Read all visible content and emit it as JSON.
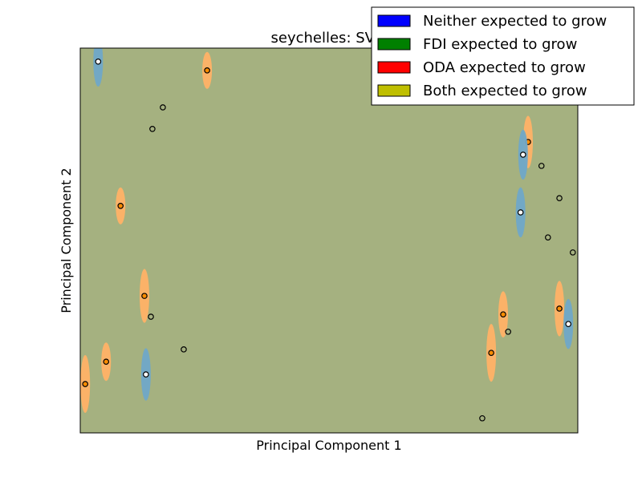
{
  "chart_data": {
    "type": "scatter",
    "title": "seychelles: SVM",
    "xlabel": "Principal Component 1",
    "ylabel": "Principal Component 2",
    "xlim": [
      0,
      100
    ],
    "ylim": [
      0,
      100
    ],
    "grid": false,
    "background_color": "#a5b180",
    "legend": {
      "placement": "top-right",
      "entries": [
        {
          "label": "Neither expected to grow",
          "color": "#0000ff"
        },
        {
          "label": "FDI expected to grow",
          "color": "#008000"
        },
        {
          "label": "ODA expected to grow",
          "color": "#ff0000"
        },
        {
          "label": "Both expected to grow",
          "color": "#bfbf00"
        }
      ]
    },
    "halo_colors": {
      "blue": "#6fa8c8",
      "orange": "#ffb266"
    },
    "points": [
      {
        "x": 3.6,
        "y": 96.5,
        "halo": "blue",
        "ry": 6.5
      },
      {
        "x": 25.5,
        "y": 94.2,
        "halo": "orange",
        "ry": 4.8
      },
      {
        "x": 16.6,
        "y": 84.6,
        "halo": null
      },
      {
        "x": 14.5,
        "y": 79.0,
        "halo": null
      },
      {
        "x": 90.0,
        "y": 75.6,
        "halo": "orange",
        "ry": 6.8
      },
      {
        "x": 89.0,
        "y": 72.3,
        "halo": "blue",
        "ry": 6.5
      },
      {
        "x": 92.7,
        "y": 69.4,
        "halo": null
      },
      {
        "x": 96.3,
        "y": 61.0,
        "halo": null
      },
      {
        "x": 8.1,
        "y": 59.0,
        "halo": "orange",
        "ry": 4.8
      },
      {
        "x": 88.5,
        "y": 57.3,
        "halo": "blue",
        "ry": 6.5
      },
      {
        "x": 94.0,
        "y": 50.8,
        "halo": null
      },
      {
        "x": 99.0,
        "y": 46.9,
        "halo": null
      },
      {
        "x": 12.9,
        "y": 35.6,
        "halo": "orange",
        "ry": 7.0
      },
      {
        "x": 96.3,
        "y": 32.3,
        "halo": "orange",
        "ry": 7.2
      },
      {
        "x": 85.0,
        "y": 30.8,
        "halo": "orange",
        "ry": 6.0
      },
      {
        "x": 14.2,
        "y": 30.2,
        "halo": null
      },
      {
        "x": 98.1,
        "y": 28.3,
        "halo": "blue",
        "ry": 6.5
      },
      {
        "x": 86.0,
        "y": 26.3,
        "halo": null
      },
      {
        "x": 82.6,
        "y": 20.8,
        "halo": "orange",
        "ry": 7.5
      },
      {
        "x": 20.8,
        "y": 21.7,
        "halo": null
      },
      {
        "x": 5.2,
        "y": 18.5,
        "halo": "orange",
        "ry": 5.0
      },
      {
        "x": 13.2,
        "y": 15.2,
        "halo": "blue",
        "ry": 6.8
      },
      {
        "x": 1.0,
        "y": 12.7,
        "halo": "orange",
        "ry": 7.5
      },
      {
        "x": 80.8,
        "y": 3.8,
        "halo": null
      }
    ]
  }
}
